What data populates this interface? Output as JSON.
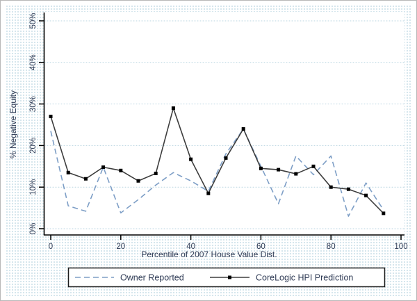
{
  "chart_data": {
    "type": "line",
    "title": "",
    "xlabel": "Percentile of 2007 House Value Dist.",
    "ylabel": "% Negative Equity",
    "x": [
      0,
      5,
      10,
      15,
      20,
      25,
      30,
      35,
      40,
      45,
      50,
      55,
      60,
      65,
      70,
      75,
      80,
      85,
      90,
      95
    ],
    "series": [
      {
        "name": "Owner Reported",
        "style": "dashed",
        "color": "#7d9ec6",
        "values": [
          23.5,
          5.5,
          4.2,
          14.8,
          3.8,
          7.0,
          10.5,
          13.5,
          11.5,
          9.0,
          18.0,
          24.0,
          15.0,
          6.0,
          17.5,
          13.0,
          17.5,
          3.0,
          11.0,
          4.5
        ]
      },
      {
        "name": "CoreLogic HPI Prediction",
        "style": "solid-marker",
        "color": "#3d3d3d",
        "marker": "square",
        "marker_color": "#000000",
        "values": [
          27.0,
          13.5,
          12.0,
          14.8,
          14.0,
          11.5,
          13.3,
          29.0,
          16.7,
          8.5,
          17.0,
          24.0,
          14.5,
          14.2,
          13.2,
          15.0,
          10.0,
          9.5,
          8.0,
          3.7
        ]
      }
    ],
    "x_ticks": [
      "0",
      "20",
      "40",
      "60",
      "80",
      "100"
    ],
    "x_tick_values": [
      0,
      20,
      40,
      60,
      80,
      100
    ],
    "y_ticks": [
      "0%",
      "10%",
      "20%",
      "30%",
      "40%",
      "50%"
    ],
    "y_tick_values": [
      0,
      10,
      20,
      30,
      40,
      50
    ],
    "xlim": [
      0,
      100
    ],
    "ylim": [
      0,
      50
    ],
    "grid": "horizontal-dotted",
    "grid_color": "#b9d5e0",
    "axis_color": "#000000",
    "text_color": "#2f3b55",
    "legend_position": "bottom"
  }
}
